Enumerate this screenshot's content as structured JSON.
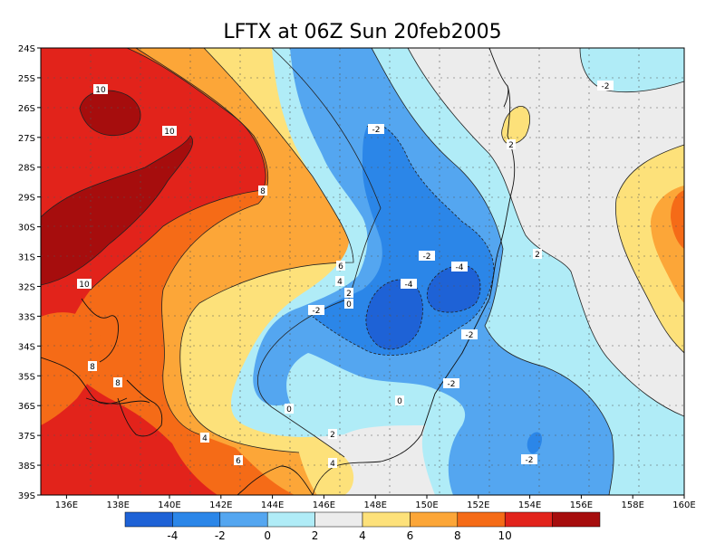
{
  "title": "LFTX at 06Z Sun 20feb2005",
  "lat_ticks": [
    "24S",
    "25S",
    "26S",
    "27S",
    "28S",
    "29S",
    "30S",
    "31S",
    "32S",
    "33S",
    "34S",
    "35S",
    "36S",
    "37S",
    "38S",
    "39S"
  ],
  "lon_ticks": [
    "136E",
    "138E",
    "140E",
    "142E",
    "144E",
    "146E",
    "148E",
    "150E",
    "152E",
    "154E",
    "156E",
    "158E",
    "160E"
  ],
  "colorbar": {
    "colors": [
      "#1e62d6",
      "#2b86e8",
      "#54a6f0",
      "#b0ecf7",
      "#ececec",
      "#fde17a",
      "#fca638",
      "#f56b17",
      "#e2231b",
      "#a60d0d"
    ],
    "labels": [
      "-4",
      "-2",
      "0",
      "2",
      "4",
      "6",
      "8",
      "10"
    ]
  },
  "contour_labels": [
    "10",
    "10",
    "8",
    "10",
    "6",
    "4",
    "2",
    "0",
    "-2",
    "-2",
    "-2",
    "-4",
    "-4",
    "-2",
    "0",
    "-2",
    "2",
    "-2",
    "2",
    "4",
    "6",
    "0",
    "8",
    "8",
    "4",
    "-2",
    "2"
  ]
}
